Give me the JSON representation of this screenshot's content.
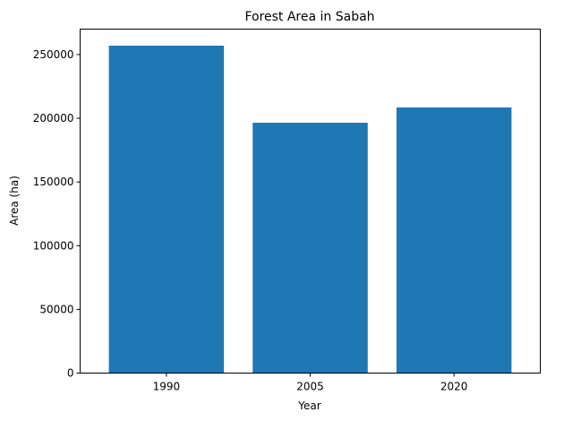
{
  "chart_data": {
    "type": "bar",
    "title": "Forest Area in Sabah",
    "xlabel": "Year",
    "ylabel": "Area (ha)",
    "categories": [
      "1990",
      "2005",
      "2020"
    ],
    "values": [
      257000,
      196500,
      208500
    ],
    "ylim": [
      0,
      270000
    ],
    "yticks": [
      0,
      50000,
      100000,
      150000,
      200000,
      250000
    ],
    "ytick_labels": [
      "0",
      "50000",
      "100000",
      "150000",
      "200000",
      "250000"
    ],
    "bar_color": "#1f77b4",
    "grid": false,
    "legend": "none"
  }
}
